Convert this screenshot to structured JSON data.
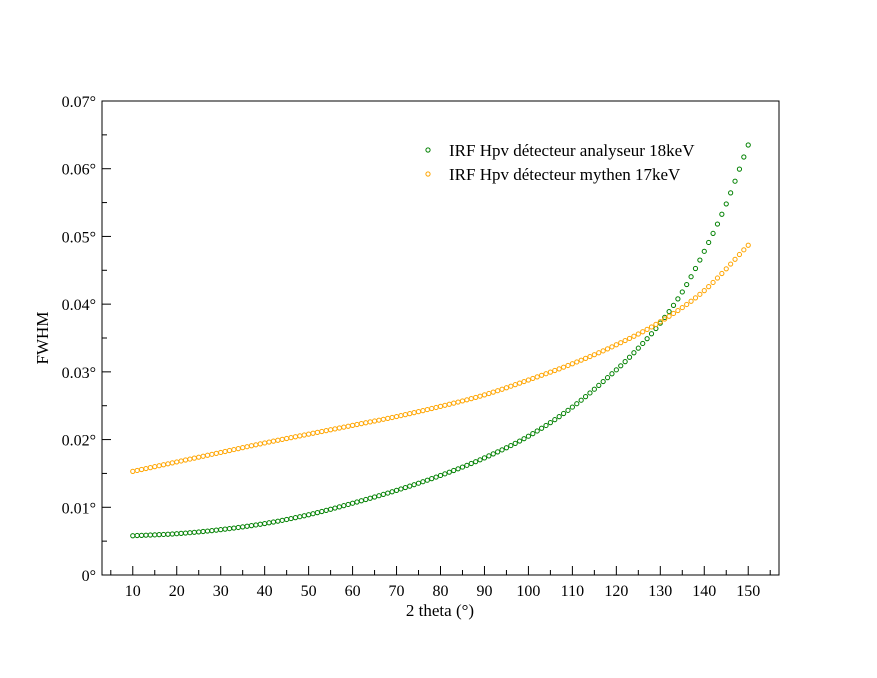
{
  "chart_data": {
    "type": "scatter",
    "xlabel": "2 theta (°)",
    "ylabel": "FWHM",
    "xlim": [
      3,
      157
    ],
    "ylim": [
      0,
      0.07
    ],
    "xticks": [
      10,
      20,
      30,
      40,
      50,
      60,
      70,
      80,
      90,
      100,
      110,
      120,
      130,
      140,
      150
    ],
    "xtick_labels": [
      "10",
      "20",
      "30",
      "40",
      "50",
      "60",
      "70",
      "80",
      "90",
      "100",
      "110",
      "120",
      "130",
      "140",
      "150"
    ],
    "yticks": [
      0,
      0.01,
      0.02,
      0.03,
      0.04,
      0.05,
      0.06,
      0.07
    ],
    "ytick_labels": [
      "0°",
      "0.01°",
      "0.02°",
      "0.03°",
      "0.04°",
      "0.05°",
      "0.06°",
      "0.07°"
    ],
    "grid": false,
    "legend_position": "top-right",
    "series": [
      {
        "name": "IRF Hpv détecteur analyseur 18keV",
        "color": "#008000",
        "x": [
          10,
          20,
          30,
          40,
          50,
          60,
          70,
          80,
          90,
          100,
          110,
          120,
          125,
          130,
          135,
          140,
          145,
          150
        ],
        "y": [
          0.0058,
          0.0061,
          0.0067,
          0.0076,
          0.0089,
          0.0106,
          0.0125,
          0.0147,
          0.0173,
          0.0205,
          0.0248,
          0.0303,
          0.0335,
          0.0372,
          0.0418,
          0.0478,
          0.0548,
          0.0635
        ]
      },
      {
        "name": "IRF Hpv détecteur mythen 17keV",
        "color": "#FFA500",
        "x": [
          10,
          20,
          30,
          40,
          50,
          60,
          70,
          80,
          90,
          100,
          110,
          120,
          130,
          140,
          150
        ],
        "y": [
          0.0153,
          0.0167,
          0.0181,
          0.0195,
          0.0208,
          0.0221,
          0.0234,
          0.0249,
          0.0266,
          0.0288,
          0.0312,
          0.034,
          0.0374,
          0.042,
          0.0487
        ]
      }
    ]
  }
}
